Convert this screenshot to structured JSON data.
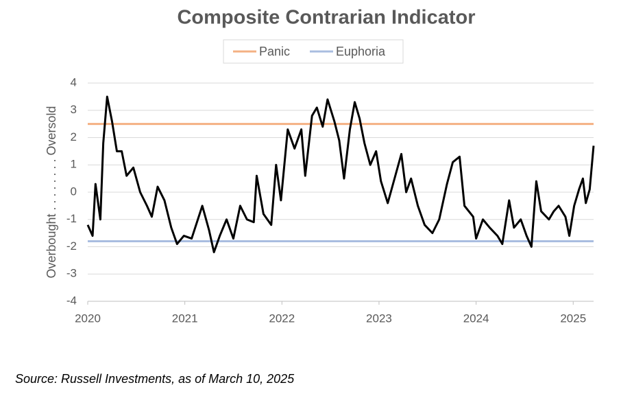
{
  "chart_data": {
    "type": "line",
    "title": "Composite Contrarian Indicator",
    "y_label": "Overbought . . . . . . . . Oversold",
    "source": "Source: Russell Investments, as of March 10, 2025",
    "x": [
      2020.0,
      2020.05,
      2020.08,
      2020.13,
      2020.16,
      2020.2,
      2020.25,
      2020.3,
      2020.35,
      2020.4,
      2020.47,
      2020.54,
      2020.61,
      2020.66,
      2020.72,
      2020.79,
      2020.86,
      2020.92,
      2020.99,
      2021.07,
      2021.18,
      2021.25,
      2021.3,
      2021.36,
      2021.43,
      2021.5,
      2021.57,
      2021.64,
      2021.71,
      2021.74,
      2021.81,
      2021.89,
      2021.94,
      2021.99,
      2022.06,
      2022.13,
      2022.2,
      2022.24,
      2022.31,
      2022.36,
      2022.42,
      2022.47,
      2022.54,
      2022.59,
      2022.64,
      2022.7,
      2022.75,
      2022.8,
      2022.85,
      2022.91,
      2022.97,
      2023.02,
      2023.09,
      2023.16,
      2023.23,
      2023.28,
      2023.33,
      2023.4,
      2023.47,
      2023.55,
      2023.62,
      2023.7,
      2023.76,
      2023.83,
      2023.88,
      2023.97,
      2024.0,
      2024.07,
      2024.14,
      2024.22,
      2024.27,
      2024.34,
      2024.39,
      2024.46,
      2024.52,
      2024.57,
      2024.62,
      2024.67,
      2024.75,
      2024.8,
      2024.85,
      2024.92,
      2024.96,
      2025.01,
      2025.06,
      2025.1,
      2025.13,
      2025.17,
      2025.21
    ],
    "series": [
      {
        "color": "#000000",
        "values": [
          -1.2,
          -1.6,
          0.3,
          -1.0,
          1.8,
          3.5,
          2.6,
          1.5,
          1.5,
          0.6,
          0.9,
          0.0,
          -0.5,
          -0.9,
          0.2,
          -0.3,
          -1.3,
          -1.9,
          -1.6,
          -1.7,
          -0.5,
          -1.4,
          -2.2,
          -1.6,
          -1.0,
          -1.7,
          -0.5,
          -1.0,
          -1.1,
          0.6,
          -0.8,
          -1.2,
          1.0,
          -0.3,
          2.3,
          1.6,
          2.3,
          0.6,
          2.8,
          3.1,
          2.4,
          3.4,
          2.6,
          1.9,
          0.5,
          2.3,
          3.3,
          2.7,
          1.8,
          1.0,
          1.5,
          0.4,
          -0.4,
          0.5,
          1.4,
          0.0,
          0.5,
          -0.5,
          -1.2,
          -1.5,
          -1.0,
          0.3,
          1.1,
          1.3,
          -0.5,
          -0.9,
          -1.7,
          -1.0,
          -1.3,
          -1.6,
          -1.9,
          -0.3,
          -1.3,
          -1.0,
          -1.6,
          -2.0,
          0.4,
          -0.7,
          -1.0,
          -0.7,
          -0.5,
          -0.9,
          -1.6,
          -0.5,
          0.1,
          0.5,
          -0.4,
          0.1,
          1.7
        ]
      }
    ],
    "thresholds": [
      {
        "name": "Panic",
        "value": 2.5,
        "color": "#f4b183"
      },
      {
        "name": "Euphoria",
        "value": -1.8,
        "color": "#a9bde0"
      }
    ],
    "xlim": [
      2020,
      2025.21
    ],
    "xticks": [
      2020,
      2021,
      2022,
      2023,
      2024,
      2025
    ],
    "ylim": [
      -4,
      4
    ],
    "yticks": [
      -4,
      -3,
      -2,
      -1,
      0,
      1,
      2,
      3,
      4
    ],
    "grid": true
  }
}
